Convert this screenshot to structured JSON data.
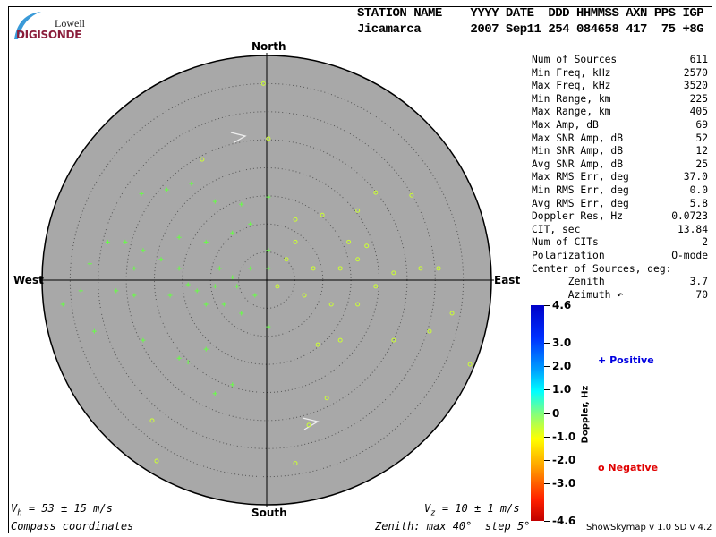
{
  "logo": {
    "top": "Lowell",
    "bottom": "DIGISONDE"
  },
  "header": {
    "line1": "STATION NAME    YYYY DATE  DDD HHMMSS AXN PPS IGP",
    "line2": "Jicamarca       2007 Sep11 254 084658 417  75 +8G"
  },
  "stats": [
    [
      "Num of Sources",
      "611"
    ],
    [
      "Min Freq, kHz",
      "2570"
    ],
    [
      "Max Freq, kHz",
      "3520"
    ],
    [
      "Min Range, km",
      "225"
    ],
    [
      "Max Range, km",
      "405"
    ],
    [
      "Max Amp, dB",
      "69"
    ],
    [
      "Max SNR Amp, dB",
      "52"
    ],
    [
      "Min SNR Amp, dB",
      "12"
    ],
    [
      "Avg SNR Amp, dB",
      "25"
    ],
    [
      "Max RMS Err, deg",
      "37.0"
    ],
    [
      "Min RMS Err, deg",
      "0.0"
    ],
    [
      "Avg RMS Err, deg",
      "5.8"
    ],
    [
      "Doppler Res, Hz",
      "0.0723"
    ],
    [
      "CIT, sec",
      "13.84"
    ],
    [
      "Num of CITs",
      "2"
    ],
    [
      "Polarization",
      "O-mode"
    ],
    [
      "Center of Sources, deg:",
      ""
    ],
    [
      "      Zenith",
      "3.7"
    ],
    [
      "      Azimuth ↶",
      "70"
    ]
  ],
  "directions": {
    "north": "North",
    "south": "South",
    "east": "East",
    "west": "West"
  },
  "vh": "V_h = 53 ± 15 m/s",
  "vh_sub": {
    "v": "V",
    "s": "h",
    "rest": " = 53 ± 15 m/s"
  },
  "vz": {
    "v": "V",
    "s": "z",
    "rest": " = 10 ± 1 m/s"
  },
  "coords": "Compass coordinates",
  "zenith": "Zenith: max 40°  step 5°",
  "colorbar": {
    "label": "Doppler, Hz",
    "ticks": [
      "4.6",
      "3.0",
      "2.0",
      "1.0",
      "0",
      "-1.0",
      "-2.0",
      "-3.0",
      "-4.6"
    ],
    "tick_values": [
      4.6,
      3,
      2,
      1,
      0,
      -1,
      -2,
      -3,
      -4.6
    ],
    "range": [
      -4.6,
      4.6
    ]
  },
  "legend": {
    "positive": "Positive",
    "negative": "Negative",
    "positive_symbol": "+",
    "negative_symbol": "o",
    "positive_color": "#0000e0",
    "negative_color": "#e00000"
  },
  "footer": "ShowSkymap v 1.0   SD v 4.2",
  "chart_data": {
    "type": "scatter",
    "projection": "polar",
    "zenith_max": 40,
    "zenith_step": 5,
    "background": "#a8a8a8",
    "xlabel": "East (deg)",
    "ylabel": "North (deg)",
    "points_note_columns": [
      "east_deg",
      "north_deg",
      "sign"
    ],
    "points": [
      [
        -0.6,
        35,
        "o"
      ],
      [
        0.3,
        25.2,
        "o"
      ],
      [
        -11.5,
        21.5,
        "o"
      ],
      [
        -22.3,
        15.4,
        "+"
      ],
      [
        -17.8,
        16.1,
        "+"
      ],
      [
        -13.4,
        17.2,
        "+"
      ],
      [
        -9.2,
        14,
        "+"
      ],
      [
        -4.5,
        13.5,
        "+"
      ],
      [
        0.3,
        14.8,
        "+"
      ],
      [
        5.1,
        10.8,
        "o"
      ],
      [
        9.9,
        11.6,
        "o"
      ],
      [
        16.2,
        12.4,
        "o"
      ],
      [
        19.4,
        15.6,
        "o"
      ],
      [
        25.8,
        15.1,
        "o"
      ],
      [
        27.4,
        2.1,
        "o"
      ],
      [
        30.6,
        2.1,
        "o"
      ],
      [
        33,
        -5.9,
        "o"
      ],
      [
        36.2,
        -15,
        "o"
      ],
      [
        29,
        -9.1,
        "o"
      ],
      [
        22.6,
        -10.7,
        "o"
      ],
      [
        16.2,
        3.7,
        "o"
      ],
      [
        13.1,
        2.1,
        "o"
      ],
      [
        8.3,
        2.1,
        "o"
      ],
      [
        5.1,
        6.8,
        "o"
      ],
      [
        3.5,
        3.7,
        "o"
      ],
      [
        0.3,
        5.3,
        "+"
      ],
      [
        -2.9,
        2.1,
        "+"
      ],
      [
        -6.1,
        0.5,
        "+"
      ],
      [
        -9.2,
        -1.1,
        "+"
      ],
      [
        -12.4,
        -1.9,
        "+"
      ],
      [
        -14,
        -0.8,
        "+"
      ],
      [
        -15.6,
        2.1,
        "+"
      ],
      [
        -18.8,
        3.7,
        "+"
      ],
      [
        -22,
        5.3,
        "+"
      ],
      [
        -25.2,
        6.8,
        "+"
      ],
      [
        -28.3,
        6.8,
        "+"
      ],
      [
        -31.5,
        2.9,
        "+"
      ],
      [
        -33.1,
        -1.9,
        "+"
      ],
      [
        -36.3,
        -4.3,
        "+"
      ],
      [
        -30.7,
        -9.1,
        "+"
      ],
      [
        -22,
        -10.7,
        "+"
      ],
      [
        -15.6,
        -13.9,
        "+"
      ],
      [
        -14,
        -14.6,
        "+"
      ],
      [
        -10.8,
        -12.3,
        "+"
      ],
      [
        -9.2,
        -20.2,
        "+"
      ],
      [
        -6.1,
        -18.6,
        "+"
      ],
      [
        5.1,
        -32.6,
        "o"
      ],
      [
        7.5,
        -25.8,
        "o"
      ],
      [
        10.7,
        -21,
        "o"
      ],
      [
        13.1,
        -10.7,
        "o"
      ],
      [
        9.1,
        -11.5,
        "o"
      ],
      [
        0.3,
        -8.3,
        "+"
      ],
      [
        -4.5,
        -5.9,
        "+"
      ],
      [
        -7.6,
        -4.3,
        "+"
      ],
      [
        -10.8,
        -4.3,
        "+"
      ],
      [
        -20.4,
        -25,
        "o"
      ],
      [
        -19.6,
        -32.2,
        "o"
      ],
      [
        -26.8,
        -1.9,
        "+"
      ],
      [
        -23.6,
        -2.7,
        "+"
      ],
      [
        -17.2,
        -2.7,
        "+"
      ],
      [
        0.3,
        2.1,
        "+"
      ],
      [
        1.9,
        -1.1,
        "o"
      ],
      [
        6.7,
        -2.7,
        "o"
      ],
      [
        11.5,
        -4.3,
        "o"
      ],
      [
        16.2,
        -4.3,
        "o"
      ],
      [
        19.4,
        -1.1,
        "o"
      ],
      [
        22.6,
        1.3,
        "o"
      ],
      [
        17.8,
        6.1,
        "o"
      ],
      [
        14.6,
        6.8,
        "o"
      ],
      [
        -6.1,
        8.4,
        "+"
      ],
      [
        -2.9,
        10,
        "+"
      ],
      [
        -10.8,
        6.8,
        "+"
      ],
      [
        -15.6,
        7.6,
        "+"
      ],
      [
        -23.6,
        2.1,
        "+"
      ],
      [
        -8.4,
        2.1,
        "+"
      ],
      [
        -5.3,
        -1.1,
        "+"
      ],
      [
        -2.1,
        -2.7,
        "+"
      ]
    ],
    "colors": {
      "positive": "#66ff44",
      "negative": "#ccff33"
    }
  }
}
